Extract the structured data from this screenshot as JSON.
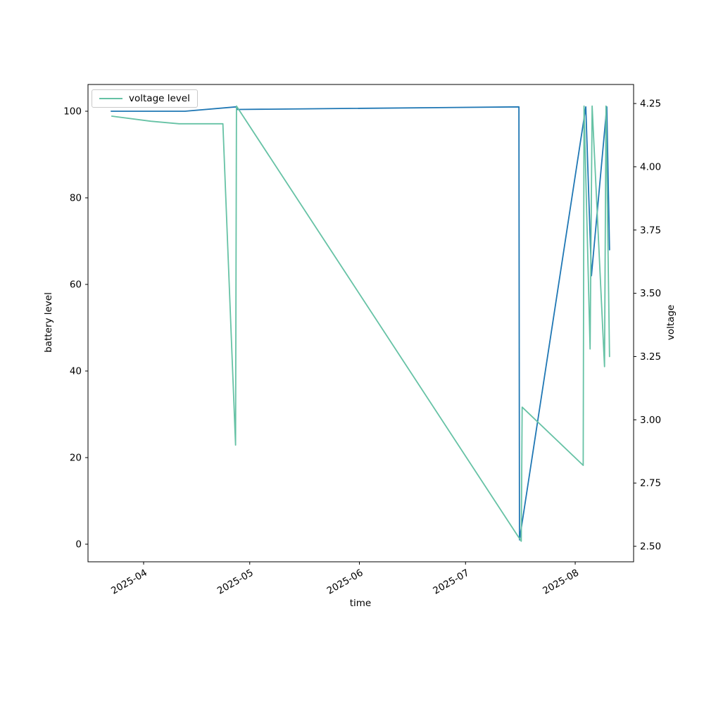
{
  "figure": {
    "xlabel": "time",
    "ylabel_left": "battery level",
    "ylabel_right": "voltage",
    "legend": {
      "label": "voltage level"
    }
  },
  "chart_data": {
    "type": "line",
    "title": "",
    "xlabel": "time",
    "grid": false,
    "legend": {
      "entries": [
        "voltage level"
      ],
      "position": "upper left"
    },
    "x_ticks": [
      {
        "label": "2025-04",
        "date": "2025-04-01"
      },
      {
        "label": "2025-05",
        "date": "2025-05-01"
      },
      {
        "label": "2025-06",
        "date": "2025-06-01"
      },
      {
        "label": "2025-07",
        "date": "2025-07-01"
      },
      {
        "label": "2025-08",
        "date": "2025-08-01"
      }
    ],
    "left_axis": {
      "label": "battery level",
      "ticks": [
        0,
        20,
        40,
        60,
        80,
        100
      ],
      "ylim": [
        -4.1,
        106.2
      ]
    },
    "right_axis": {
      "label": "voltage",
      "ticks": [
        2.5,
        2.75,
        3.0,
        3.25,
        3.5,
        3.75,
        4.0,
        4.25
      ],
      "ylim": [
        2.44,
        4.33
      ]
    },
    "series": [
      {
        "name": "battery level",
        "axis": "left",
        "color": "#1f77b4",
        "points": [
          [
            "2025-03-22T20:00",
            100
          ],
          [
            "2025-04-12T17:00",
            100
          ],
          [
            "2025-04-27T02:00",
            101
          ],
          [
            "2025-04-27T12:00",
            100.4
          ],
          [
            "2025-07-16T02:00",
            101
          ],
          [
            "2025-07-16T06:00",
            1
          ],
          [
            "2025-08-04T00:00",
            101
          ],
          [
            "2025-08-05T14:00",
            62
          ],
          [
            "2025-08-09T22:00",
            101
          ],
          [
            "2025-08-10T17:00",
            68
          ]
        ]
      },
      {
        "name": "voltage level",
        "axis": "right",
        "color": "#66c2a5",
        "points": [
          [
            "2025-03-23T00:00",
            4.2
          ],
          [
            "2025-04-03T00:00",
            4.18
          ],
          [
            "2025-04-11T00:00",
            4.17
          ],
          [
            "2025-04-23T10:00",
            4.17
          ],
          [
            "2025-04-27T00:00",
            2.9
          ],
          [
            "2025-04-27T06:00",
            4.24
          ],
          [
            "2025-07-16T18:00",
            2.52
          ],
          [
            "2025-07-17T00:00",
            3.05
          ],
          [
            "2025-08-03T06:00",
            2.82
          ],
          [
            "2025-08-03T12:00",
            4.24
          ],
          [
            "2025-08-05T05:00",
            3.28
          ],
          [
            "2025-08-05T19:00",
            4.24
          ],
          [
            "2025-08-09T07:00",
            3.21
          ],
          [
            "2025-08-09T17:00",
            4.24
          ],
          [
            "2025-08-10T17:00",
            3.25
          ]
        ]
      }
    ]
  }
}
